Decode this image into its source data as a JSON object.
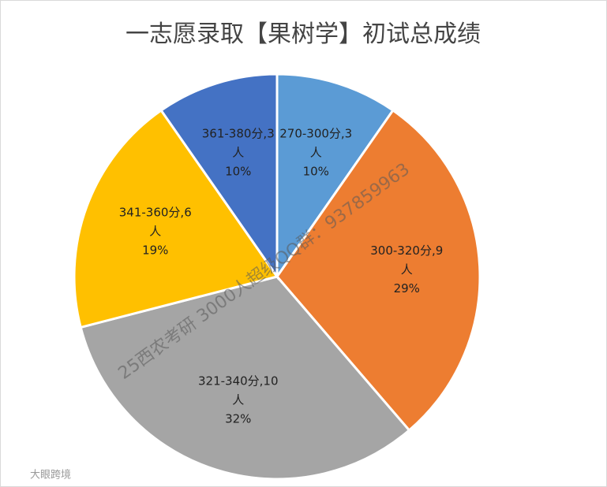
{
  "chart_data": {
    "type": "pie",
    "title": "一志愿录取【果树学】初试总成绩",
    "values": [
      3,
      9,
      10,
      6,
      3
    ],
    "value_labels": [
      [
        "270-300分,3",
        "人",
        "10%"
      ],
      [
        "300-320分,9",
        "人",
        "29%"
      ],
      [
        "321-340分,10",
        "人",
        "32%"
      ],
      [
        "341-360分,6",
        "人",
        "19%"
      ],
      [
        "361-380分,3",
        "人",
        "10%"
      ]
    ],
    "colors": [
      "#5b9bd5",
      "#ed7d31",
      "#a5a5a5",
      "#ffc000",
      "#4472c4"
    ]
  },
  "watermark": "25西农考研 3000人超级QQ群：937859963",
  "logo": "大眼跨境"
}
